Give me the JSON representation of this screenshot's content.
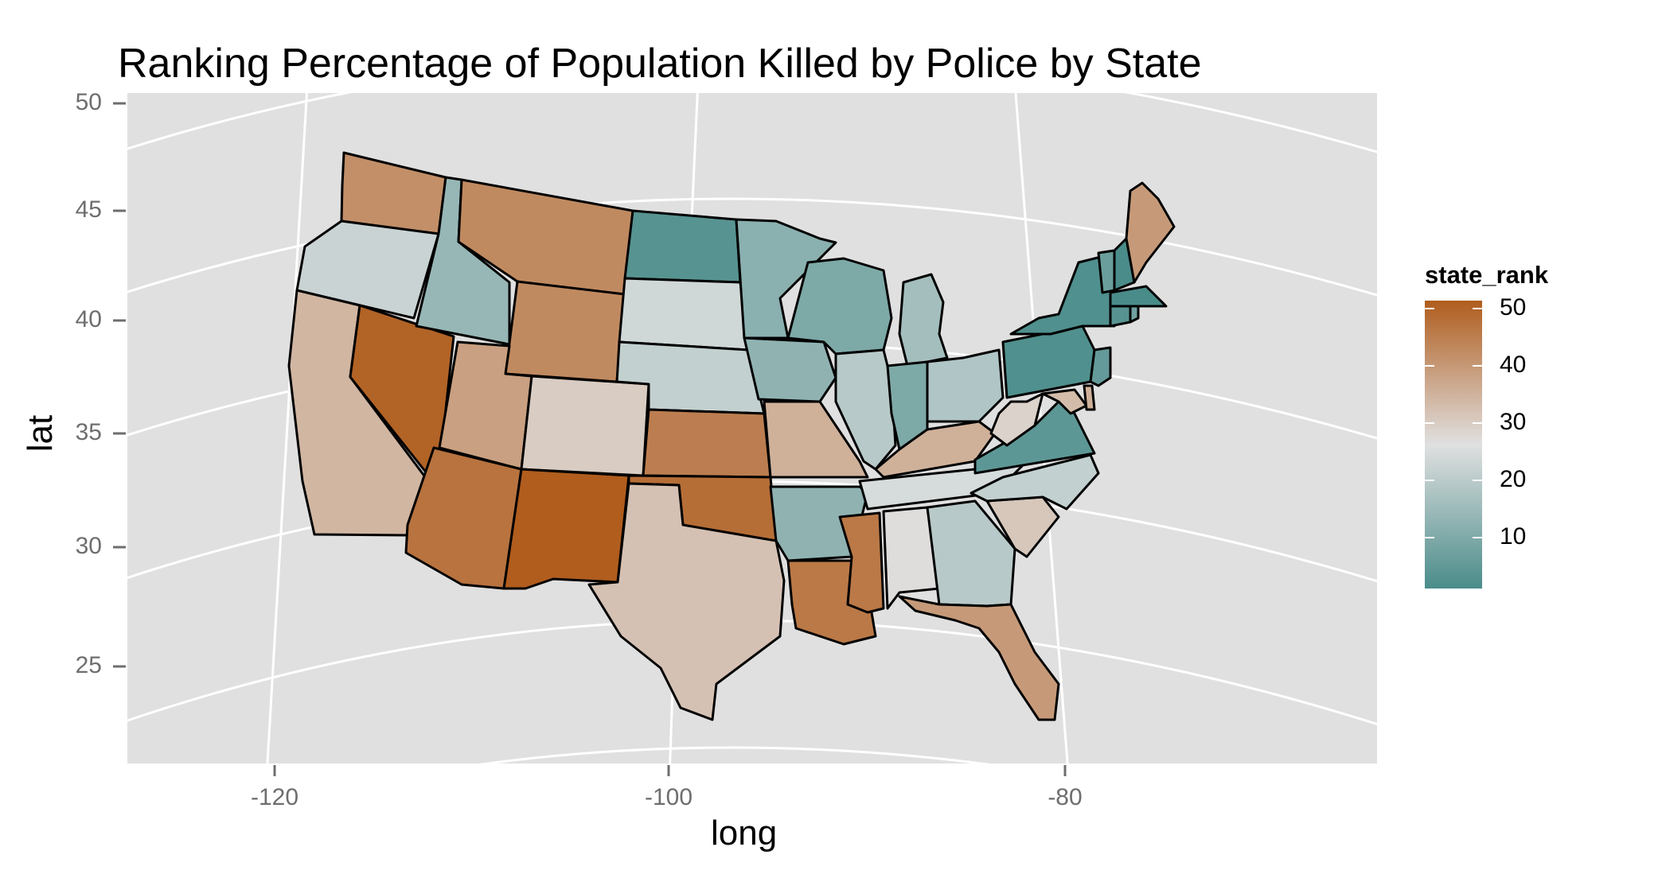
{
  "chart_data": {
    "type": "map",
    "title": "Ranking Percentage of Population Killed by Police by State",
    "xlabel": "long",
    "ylabel": "lat",
    "x_ticks": [
      "-120",
      "-100",
      "-80"
    ],
    "y_ticks": [
      "50",
      "45",
      "40",
      "35",
      "30",
      "25"
    ],
    "legend": {
      "title": "state_rank",
      "labels": [
        "50",
        "40",
        "30",
        "20",
        "10"
      ],
      "color_low": "#4a8c8a",
      "color_mid": "#e0e0e0",
      "color_high": "#b05d1e"
    },
    "panel_background": "#e0e0e0",
    "grid_color": "#ffffff",
    "regions": [
      {
        "name": "Washington",
        "rank": 42
      },
      {
        "name": "Oregon",
        "rank": 24
      },
      {
        "name": "California",
        "rank": 35
      },
      {
        "name": "Nevada",
        "rank": 50
      },
      {
        "name": "Idaho",
        "rank": 16
      },
      {
        "name": "Montana",
        "rank": 43
      },
      {
        "name": "Wyoming",
        "rank": 43
      },
      {
        "name": "Utah",
        "rank": 39
      },
      {
        "name": "Arizona",
        "rank": 47
      },
      {
        "name": "Colorado",
        "rank": 31
      },
      {
        "name": "New Mexico",
        "rank": 51
      },
      {
        "name": "North Dakota",
        "rank": 6
      },
      {
        "name": "South Dakota",
        "rank": 25
      },
      {
        "name": "Nebraska",
        "rank": 23
      },
      {
        "name": "Kansas",
        "rank": 45
      },
      {
        "name": "Oklahoma",
        "rank": 48
      },
      {
        "name": "Texas",
        "rank": 33
      },
      {
        "name": "Minnesota",
        "rank": 14
      },
      {
        "name": "Iowa",
        "rank": 15
      },
      {
        "name": "Missouri",
        "rank": 36
      },
      {
        "name": "Arkansas",
        "rank": 15
      },
      {
        "name": "Louisiana",
        "rank": 46
      },
      {
        "name": "Wisconsin",
        "rank": 12
      },
      {
        "name": "Illinois",
        "rank": 21
      },
      {
        "name": "Michigan",
        "rank": 18
      },
      {
        "name": "Indiana",
        "rank": 12
      },
      {
        "name": "Ohio",
        "rank": 20
      },
      {
        "name": "Kentucky",
        "rank": 36
      },
      {
        "name": "Tennessee",
        "rank": 26
      },
      {
        "name": "Mississippi",
        "rank": 46
      },
      {
        "name": "Alabama",
        "rank": 28
      },
      {
        "name": "Georgia",
        "rank": 21
      },
      {
        "name": "Florida",
        "rank": 40
      },
      {
        "name": "South Carolina",
        "rank": 32
      },
      {
        "name": "North Carolina",
        "rank": 23
      },
      {
        "name": "Virginia",
        "rank": 7
      },
      {
        "name": "West Virginia",
        "rank": 30
      },
      {
        "name": "Maryland",
        "rank": 34
      },
      {
        "name": "Delaware",
        "rank": 36
      },
      {
        "name": "Pennsylvania",
        "rank": 5
      },
      {
        "name": "New Jersey",
        "rank": 8
      },
      {
        "name": "New York",
        "rank": 5
      },
      {
        "name": "Connecticut",
        "rank": 6
      },
      {
        "name": "Rhode Island",
        "rank": 10
      },
      {
        "name": "Massachusetts",
        "rank": 4
      },
      {
        "name": "Vermont",
        "rank": 9
      },
      {
        "name": "New Hampshire",
        "rank": 4
      },
      {
        "name": "Maine",
        "rank": 40
      }
    ]
  }
}
